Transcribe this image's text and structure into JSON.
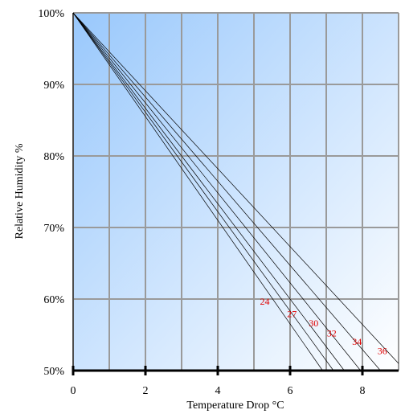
{
  "chart_data": {
    "type": "line",
    "title": "",
    "xlabel": "Temperature Drop °C",
    "ylabel": "Relative Humidity %",
    "xlim": [
      0,
      9
    ],
    "ylim": [
      50,
      100
    ],
    "x_ticks": [
      0,
      2,
      4,
      6,
      8
    ],
    "x_tick_labels": [
      "0",
      "2",
      "4",
      "6",
      "8"
    ],
    "y_ticks": [
      50,
      60,
      70,
      80,
      90,
      100
    ],
    "y_tick_labels": [
      "50%",
      "60%",
      "70%",
      "80%",
      "90%",
      "100%"
    ],
    "grid": true,
    "legend": "none",
    "colors": {
      "gradient_start": "#99c8fc",
      "gradient_end": "#ffffff",
      "grid": "#9a9a9a",
      "lines": "#000000",
      "series_labels": "#e00000"
    },
    "series": [
      {
        "name": "24",
        "x": [
          0,
          6.9
        ],
        "y": [
          100,
          50
        ]
      },
      {
        "name": "27",
        "x": [
          0,
          7.2
        ],
        "y": [
          100,
          50
        ]
      },
      {
        "name": "30",
        "x": [
          0,
          7.5
        ],
        "y": [
          100,
          50
        ]
      },
      {
        "name": "32",
        "x": [
          0,
          7.95
        ],
        "y": [
          100,
          50
        ]
      },
      {
        "name": "34",
        "x": [
          0,
          8.5
        ],
        "y": [
          100,
          50
        ]
      },
      {
        "name": "36",
        "x": [
          0,
          9.0
        ],
        "y": [
          100,
          51
        ]
      }
    ],
    "series_label_positions": [
      {
        "name": "24",
        "x": 5.3,
        "y": 59.2
      },
      {
        "name": "27",
        "x": 6.05,
        "y": 57.5
      },
      {
        "name": "30",
        "x": 6.65,
        "y": 56.2
      },
      {
        "name": "32",
        "x": 7.15,
        "y": 54.8
      },
      {
        "name": "34",
        "x": 7.85,
        "y": 53.6
      },
      {
        "name": "36",
        "x": 8.55,
        "y": 52.3
      }
    ]
  }
}
